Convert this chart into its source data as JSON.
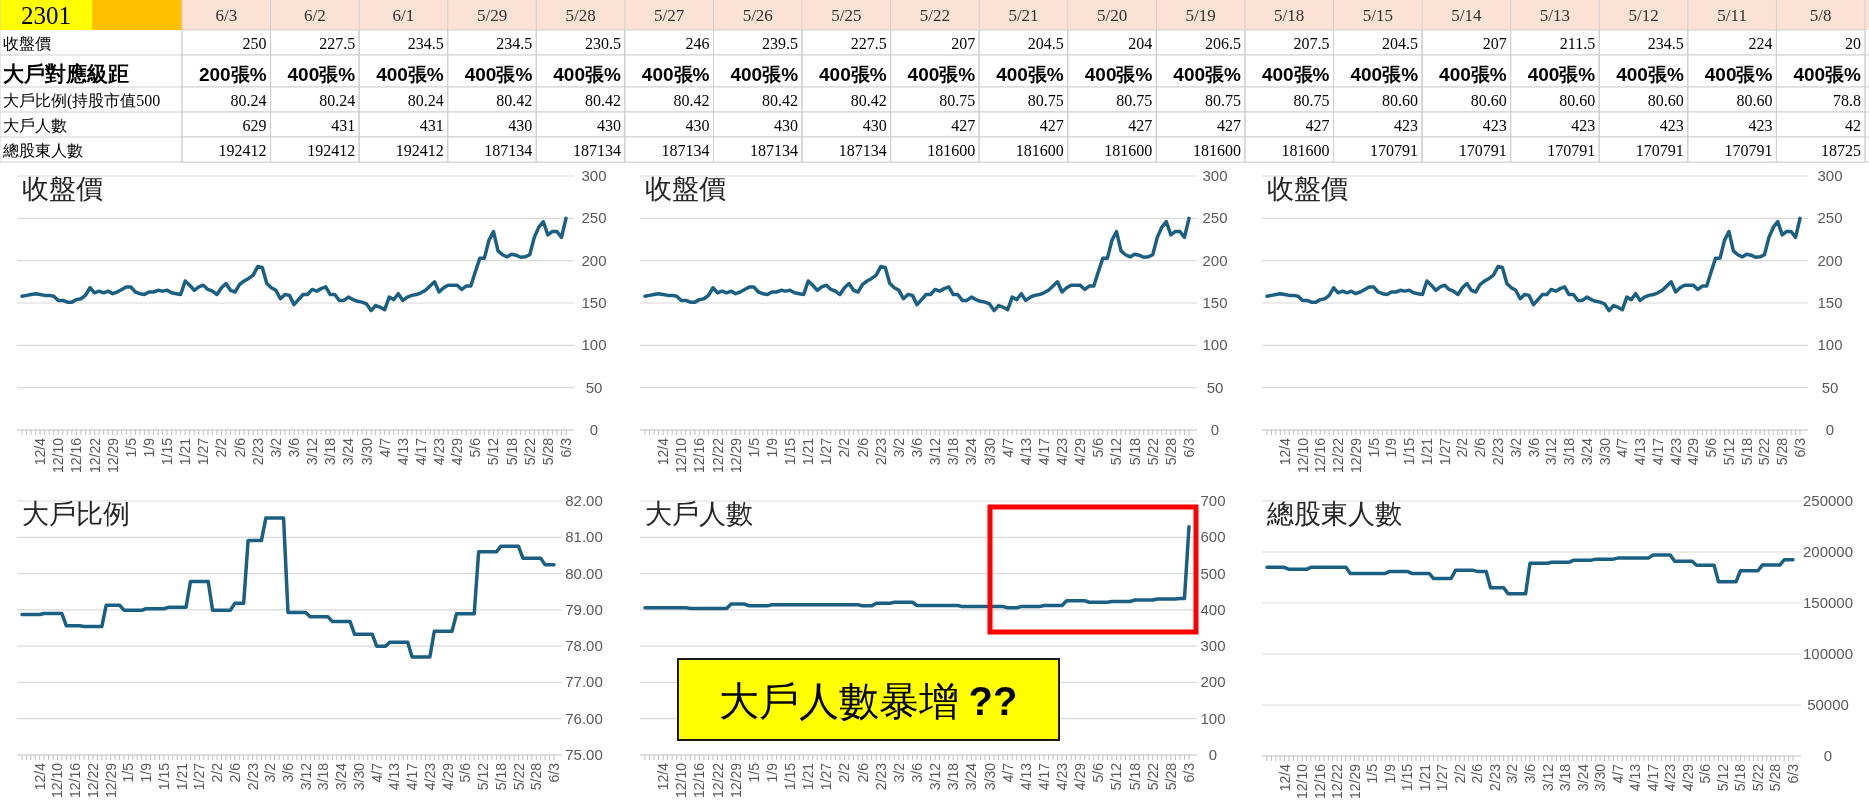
{
  "chart_data": [
    {
      "type": "heatmap",
      "title": "2301",
      "cells": [
        [
          null,
          null,
          null,
          null,
          null,
          null,
          null,
          null,
          null,
          null,
          null,
          null,
          null,
          null,
          null,
          null,
          null,
          null,
          null
        ],
        [
          null,
          null,
          null,
          null,
          null,
          null,
          null,
          null,
          null,
          null,
          null,
          null,
          null,
          null,
          null,
          null,
          null,
          null,
          null
        ],
        [
          null,
          null,
          null,
          null,
          null,
          null,
          null,
          null,
          null,
          null,
          null,
          null,
          null,
          null,
          null,
          null,
          null,
          null,
          null
        ],
        [
          null,
          null,
          null,
          null,
          null,
          null,
          null,
          null,
          null,
          null,
          null,
          null,
          null,
          null,
          null,
          null,
          null,
          null,
          null
        ],
        [
          null,
          null,
          null,
          null,
          null,
          null,
          null,
          null,
          null,
          null,
          null,
          null,
          null,
          null,
          null,
          null,
          null,
          null,
          null
        ]
      ],
      "categories": [
        "6/3",
        "6/2",
        "6/1",
        "5/29",
        "5/28",
        "5/27",
        "5/26",
        "5/25",
        "5/22",
        "5/21",
        "5/20",
        "5/19",
        "5/18",
        "5/15",
        "5/14",
        "5/13",
        "5/12",
        "5/11",
        "5/8"
      ],
      "y_categories": [
        "收盤價",
        "大戶對應級距",
        "大戶比例(持股市值500",
        "大戶人數",
        "總股東人數"
      ],
      "cell_labels": [
        [
          "250",
          "227.5",
          "234.5",
          "234.5",
          "230.5",
          "246",
          "239.5",
          "227.5",
          "207",
          "204.5",
          "204",
          "206.5",
          "207.5",
          "204.5",
          "207",
          "211.5",
          "234.5",
          "224",
          "20"
        ],
        [
          "200張%",
          "400張%",
          "400張%",
          "400張%",
          "400張%",
          "400張%",
          "400張%",
          "400張%",
          "400張%",
          "400張%",
          "400張%",
          "400張%",
          "400張%",
          "400張%",
          "400張%",
          "400張%",
          "400張%",
          "400張%",
          "400張%"
        ],
        [
          "80.24",
          "80.24",
          "80.24",
          "80.42",
          "80.42",
          "80.42",
          "80.42",
          "80.42",
          "80.75",
          "80.75",
          "80.75",
          "80.75",
          "80.75",
          "80.60",
          "80.60",
          "80.60",
          "80.60",
          "80.60",
          "78.8"
        ],
        [
          "629",
          "431",
          "431",
          "430",
          "430",
          "430",
          "430",
          "430",
          "427",
          "427",
          "427",
          "427",
          "427",
          "423",
          "423",
          "423",
          "423",
          "423",
          "42"
        ],
        [
          "192412",
          "192412",
          "192412",
          "187134",
          "187134",
          "187134",
          "187134",
          "187134",
          "181600",
          "181600",
          "181600",
          "181600",
          "181600",
          "170791",
          "170791",
          "170791",
          "170791",
          "170791",
          "18725"
        ]
      ]
    },
    {
      "type": "line",
      "title": "收盤價",
      "color": "#1b5f82",
      "ylim": [
        0,
        300
      ],
      "yticks": [
        0,
        50,
        100,
        150,
        200,
        250,
        300
      ],
      "grid": "y",
      "categories": [
        null,
        null,
        null,
        null,
        "12/4",
        null,
        null,
        null,
        "12/10",
        null,
        null,
        null,
        "12/16",
        null,
        null,
        null,
        "12/22",
        null,
        null,
        null,
        "12/29",
        null,
        null,
        null,
        "1/5",
        null,
        null,
        null,
        "1/9",
        null,
        null,
        null,
        "1/15",
        null,
        null,
        null,
        "1/21",
        null,
        null,
        null,
        "1/27",
        null,
        null,
        null,
        "2/2",
        null,
        null,
        null,
        "2/6",
        null,
        null,
        null,
        "2/23",
        null,
        null,
        null,
        "3/2",
        null,
        null,
        null,
        "3/6",
        null,
        null,
        null,
        "3/12",
        null,
        null,
        null,
        "3/18",
        null,
        null,
        null,
        "3/24",
        null,
        null,
        null,
        "3/30",
        null,
        null,
        null,
        "4/7",
        null,
        null,
        null,
        "4/13",
        null,
        null,
        null,
        "4/17",
        null,
        null,
        null,
        "4/23",
        null,
        null,
        null,
        "4/29",
        null,
        null,
        null,
        "5/6",
        null,
        null,
        null,
        "5/12",
        null,
        null,
        null,
        "5/18",
        null,
        null,
        null,
        "5/22",
        null,
        null,
        null,
        "5/28",
        null,
        null,
        null,
        "6/3"
      ],
      "values": [
        158,
        159,
        160,
        161,
        160,
        159,
        159,
        158,
        153,
        153,
        151,
        151,
        154,
        155,
        159,
        168,
        162,
        164,
        162,
        164,
        161,
        163,
        166,
        169,
        169,
        163,
        161,
        160,
        163,
        163,
        165,
        164,
        165,
        162,
        161,
        160,
        176,
        171,
        165,
        169,
        171,
        166,
        164,
        160,
        168,
        173,
        165,
        163,
        172,
        176,
        179,
        183,
        193,
        192,
        173,
        168,
        165,
        155,
        160,
        159,
        148,
        154,
        160,
        160,
        166,
        164,
        167,
        169,
        160,
        160,
        153,
        153,
        157,
        154,
        152,
        151,
        149,
        141,
        147,
        145,
        142,
        157,
        154,
        161,
        153,
        157,
        159,
        160,
        162,
        165,
        170,
        175,
        163,
        168,
        171,
        171,
        171,
        166,
        170,
        170,
        187,
        203,
        203,
        224,
        234.5,
        211.5,
        207,
        204.5,
        207.5,
        206.5,
        204,
        204.5,
        207,
        227.5,
        239.5,
        246,
        230.5,
        234.5,
        234.5,
        227.5,
        250
      ]
    },
    {
      "type": "line",
      "title": "收盤價",
      "color": "#1b5f82",
      "ylim": [
        0,
        300
      ],
      "yticks": [
        0,
        50,
        100,
        150,
        200,
        250,
        300
      ],
      "grid": "y",
      "categories": [
        null,
        null,
        null,
        null,
        "12/4",
        null,
        null,
        null,
        "12/10",
        null,
        null,
        null,
        "12/16",
        null,
        null,
        null,
        "12/22",
        null,
        null,
        null,
        "12/29",
        null,
        null,
        null,
        "1/5",
        null,
        null,
        null,
        "1/9",
        null,
        null,
        null,
        "1/15",
        null,
        null,
        null,
        "1/21",
        null,
        null,
        null,
        "1/27",
        null,
        null,
        null,
        "2/2",
        null,
        null,
        null,
        "2/6",
        null,
        null,
        null,
        "2/23",
        null,
        null,
        null,
        "3/2",
        null,
        null,
        null,
        "3/6",
        null,
        null,
        null,
        "3/12",
        null,
        null,
        null,
        "3/18",
        null,
        null,
        null,
        "3/24",
        null,
        null,
        null,
        "3/30",
        null,
        null,
        null,
        "4/7",
        null,
        null,
        null,
        "4/13",
        null,
        null,
        null,
        "4/17",
        null,
        null,
        null,
        "4/23",
        null,
        null,
        null,
        "4/29",
        null,
        null,
        null,
        "5/6",
        null,
        null,
        null,
        "5/12",
        null,
        null,
        null,
        "5/18",
        null,
        null,
        null,
        "5/22",
        null,
        null,
        null,
        "5/28",
        null,
        null,
        null,
        "6/3"
      ],
      "values": [
        158,
        159,
        160,
        161,
        160,
        159,
        159,
        158,
        153,
        153,
        151,
        151,
        154,
        155,
        159,
        168,
        162,
        164,
        162,
        164,
        161,
        163,
        166,
        169,
        169,
        163,
        161,
        160,
        163,
        163,
        165,
        164,
        165,
        162,
        161,
        160,
        176,
        171,
        165,
        169,
        171,
        166,
        164,
        160,
        168,
        173,
        165,
        163,
        172,
        176,
        179,
        183,
        193,
        192,
        173,
        168,
        165,
        155,
        160,
        159,
        148,
        154,
        160,
        160,
        166,
        164,
        167,
        169,
        160,
        160,
        153,
        153,
        157,
        154,
        152,
        151,
        149,
        141,
        147,
        145,
        142,
        157,
        154,
        161,
        153,
        157,
        159,
        160,
        162,
        165,
        170,
        175,
        163,
        168,
        171,
        171,
        171,
        166,
        170,
        170,
        187,
        203,
        203,
        224,
        234.5,
        211.5,
        207,
        204.5,
        207.5,
        206.5,
        204,
        204.5,
        207,
        227.5,
        239.5,
        246,
        230.5,
        234.5,
        234.5,
        227.5,
        250
      ]
    },
    {
      "type": "line",
      "title": "收盤價",
      "color": "#1b5f82",
      "ylim": [
        0,
        300
      ],
      "yticks": [
        0,
        50,
        100,
        150,
        200,
        250,
        300
      ],
      "grid": "y",
      "categories": [
        null,
        null,
        null,
        null,
        "12/4",
        null,
        null,
        null,
        "12/10",
        null,
        null,
        null,
        "12/16",
        null,
        null,
        null,
        "12/22",
        null,
        null,
        null,
        "12/29",
        null,
        null,
        null,
        "1/5",
        null,
        null,
        null,
        "1/9",
        null,
        null,
        null,
        "1/15",
        null,
        null,
        null,
        "1/21",
        null,
        null,
        null,
        "1/27",
        null,
        null,
        null,
        "2/2",
        null,
        null,
        null,
        "2/6",
        null,
        null,
        null,
        "2/23",
        null,
        null,
        null,
        "3/2",
        null,
        null,
        null,
        "3/6",
        null,
        null,
        null,
        "3/12",
        null,
        null,
        null,
        "3/18",
        null,
        null,
        null,
        "3/24",
        null,
        null,
        null,
        "3/30",
        null,
        null,
        null,
        "4/7",
        null,
        null,
        null,
        "4/13",
        null,
        null,
        null,
        "4/17",
        null,
        null,
        null,
        "4/23",
        null,
        null,
        null,
        "4/29",
        null,
        null,
        null,
        "5/6",
        null,
        null,
        null,
        "5/12",
        null,
        null,
        null,
        "5/18",
        null,
        null,
        null,
        "5/22",
        null,
        null,
        null,
        "5/28",
        null,
        null,
        null,
        "6/3"
      ],
      "values": [
        158,
        159,
        160,
        161,
        160,
        159,
        159,
        158,
        153,
        153,
        151,
        151,
        154,
        155,
        159,
        168,
        162,
        164,
        162,
        164,
        161,
        163,
        166,
        169,
        169,
        163,
        161,
        160,
        163,
        163,
        165,
        164,
        165,
        162,
        161,
        160,
        176,
        171,
        165,
        169,
        171,
        166,
        164,
        160,
        168,
        173,
        165,
        163,
        172,
        176,
        179,
        183,
        193,
        192,
        173,
        168,
        165,
        155,
        160,
        159,
        148,
        154,
        160,
        160,
        166,
        164,
        167,
        169,
        160,
        160,
        153,
        153,
        157,
        154,
        152,
        151,
        149,
        141,
        147,
        145,
        142,
        157,
        154,
        161,
        153,
        157,
        159,
        160,
        162,
        165,
        170,
        175,
        163,
        168,
        171,
        171,
        171,
        166,
        170,
        170,
        187,
        203,
        203,
        224,
        234.5,
        211.5,
        207,
        204.5,
        207.5,
        206.5,
        204,
        204.5,
        207,
        227.5,
        239.5,
        246,
        230.5,
        234.5,
        234.5,
        227.5,
        250
      ]
    },
    {
      "type": "line",
      "title": "大戶比例",
      "color": "#1b5f82",
      "ylim": [
        75,
        82
      ],
      "yticks": [
        {
          "value": 75,
          "label": "75.00"
        },
        {
          "value": 76,
          "label": "76.00"
        },
        {
          "value": 77,
          "label": "77.00"
        },
        {
          "value": 78,
          "label": "78.00"
        },
        {
          "value": 79,
          "label": "79.00"
        },
        {
          "value": 80,
          "label": "80.00"
        },
        {
          "value": 81,
          "label": "81.00"
        },
        {
          "value": 82,
          "label": "82.00"
        }
      ],
      "grid": "y",
      "categories": [
        null,
        null,
        null,
        null,
        "12/4",
        null,
        null,
        null,
        "12/10",
        null,
        null,
        null,
        "12/16",
        null,
        null,
        null,
        "12/22",
        null,
        null,
        null,
        "12/29",
        null,
        null,
        null,
        "1/5",
        null,
        null,
        null,
        "1/9",
        null,
        null,
        null,
        "1/15",
        null,
        null,
        null,
        "1/21",
        null,
        null,
        null,
        "1/27",
        null,
        null,
        null,
        "2/2",
        null,
        null,
        null,
        "2/6",
        null,
        null,
        null,
        "2/23",
        null,
        null,
        null,
        "3/2",
        null,
        null,
        null,
        "3/6",
        null,
        null,
        null,
        "3/12",
        null,
        null,
        null,
        "3/18",
        null,
        null,
        null,
        "3/24",
        null,
        null,
        null,
        "3/30",
        null,
        null,
        null,
        "4/7",
        null,
        null,
        null,
        "4/13",
        null,
        null,
        null,
        "4/17",
        null,
        null,
        null,
        "4/23",
        null,
        null,
        null,
        "4/29",
        null,
        null,
        null,
        "5/6",
        null,
        null,
        null,
        "5/12",
        null,
        null,
        null,
        "5/18",
        null,
        null,
        null,
        "5/22",
        null,
        null,
        null,
        "5/28",
        null,
        null,
        null,
        "6/3"
      ],
      "values": [
        78.87,
        78.87,
        78.87,
        78.87,
        78.87,
        78.9,
        78.9,
        78.9,
        78.9,
        78.9,
        78.56,
        78.56,
        78.56,
        78.56,
        78.54,
        78.54,
        78.54,
        78.54,
        78.54,
        79.13,
        79.13,
        79.13,
        79.13,
        78.99,
        78.99,
        78.99,
        78.99,
        78.99,
        79.03,
        79.03,
        79.03,
        79.03,
        79.03,
        79.07,
        79.07,
        79.07,
        79.07,
        79.07,
        79.78,
        79.78,
        79.78,
        79.78,
        79.78,
        78.99,
        78.99,
        78.99,
        78.99,
        78.99,
        79.18,
        79.18,
        79.18,
        80.91,
        80.91,
        80.91,
        80.91,
        81.53,
        81.53,
        81.53,
        81.53,
        81.53,
        78.93,
        78.93,
        78.93,
        78.93,
        78.93,
        78.81,
        78.81,
        78.81,
        78.81,
        78.81,
        78.68,
        78.68,
        78.68,
        78.68,
        78.68,
        78.33,
        78.33,
        78.33,
        78.33,
        78.33,
        78.0,
        78.0,
        78.0,
        78.11,
        78.11,
        78.11,
        78.11,
        78.11,
        77.7,
        77.7,
        77.7,
        77.7,
        77.7,
        78.41,
        78.41,
        78.41,
        78.41,
        78.41,
        78.89,
        78.89,
        78.89,
        78.89,
        78.89,
        80.6,
        80.6,
        80.6,
        80.6,
        80.6,
        80.75,
        80.75,
        80.75,
        80.75,
        80.75,
        80.42,
        80.42,
        80.42,
        80.42,
        80.42,
        80.24,
        80.24,
        80.24
      ]
    },
    {
      "type": "line",
      "title": "大戶人數",
      "color": "#1b5f82",
      "ylim": [
        0,
        700
      ],
      "yticks": [
        0,
        100,
        200,
        300,
        400,
        500,
        600,
        700
      ],
      "grid": "y",
      "annotations": [
        "大戶人數暴增 **??**"
      ],
      "categories": [
        null,
        null,
        null,
        null,
        "12/4",
        null,
        null,
        null,
        "12/10",
        null,
        null,
        null,
        "12/16",
        null,
        null,
        null,
        "12/22",
        null,
        null,
        null,
        "12/29",
        null,
        null,
        null,
        "1/5",
        null,
        null,
        null,
        "1/9",
        null,
        null,
        null,
        "1/15",
        null,
        null,
        null,
        "1/21",
        null,
        null,
        null,
        "1/27",
        null,
        null,
        null,
        "2/2",
        null,
        null,
        null,
        "2/6",
        null,
        null,
        null,
        "2/23",
        null,
        null,
        null,
        "3/2",
        null,
        null,
        null,
        "3/6",
        null,
        null,
        null,
        "3/12",
        null,
        null,
        null,
        "3/18",
        null,
        null,
        null,
        "3/24",
        null,
        null,
        null,
        "3/30",
        null,
        null,
        null,
        "4/7",
        null,
        null,
        null,
        "4/13",
        null,
        null,
        null,
        "4/17",
        null,
        null,
        null,
        "4/23",
        null,
        null,
        null,
        "4/29",
        null,
        null,
        null,
        "5/6",
        null,
        null,
        null,
        "5/12",
        null,
        null,
        null,
        "5/18",
        null,
        null,
        null,
        "5/22",
        null,
        null,
        null,
        "5/28",
        null,
        null,
        null,
        "6/3"
      ],
      "values": [
        406,
        406,
        406,
        406,
        406,
        406,
        406,
        406,
        406,
        406,
        404,
        404,
        404,
        404,
        404,
        404,
        404,
        404,
        404,
        416,
        416,
        416,
        416,
        411,
        411,
        411,
        411,
        411,
        414,
        414,
        414,
        414,
        414,
        414,
        414,
        414,
        414,
        414,
        414,
        414,
        414,
        414,
        414,
        414,
        414,
        414,
        414,
        414,
        411,
        411,
        411,
        418,
        418,
        418,
        418,
        421,
        421,
        421,
        421,
        421,
        412,
        412,
        412,
        412,
        412,
        412,
        412,
        412,
        412,
        412,
        409,
        409,
        409,
        409,
        409,
        409,
        409,
        409,
        409,
        409,
        406,
        406,
        406,
        409,
        409,
        409,
        409,
        409,
        412,
        412,
        412,
        412,
        412,
        425,
        425,
        425,
        425,
        425,
        421,
        421,
        421,
        421,
        421,
        423,
        423,
        423,
        423,
        423,
        427,
        427,
        427,
        427,
        427,
        430,
        430,
        430,
        430,
        430,
        431,
        431,
        629
      ]
    },
    {
      "type": "line",
      "title": "總股東人數",
      "color": "#1b5f82",
      "ylim": [
        0,
        250000
      ],
      "yticks": [
        0,
        50000,
        100000,
        150000,
        200000,
        250000
      ],
      "grid": "y",
      "categories": [
        null,
        null,
        null,
        null,
        "12/4",
        null,
        null,
        null,
        "12/10",
        null,
        null,
        null,
        "12/16",
        null,
        null,
        null,
        "12/22",
        null,
        null,
        null,
        "12/29",
        null,
        null,
        null,
        "1/5",
        null,
        null,
        null,
        "1/9",
        null,
        null,
        null,
        "1/15",
        null,
        null,
        null,
        "1/21",
        null,
        null,
        null,
        "1/27",
        null,
        null,
        null,
        "2/2",
        null,
        null,
        null,
        "2/6",
        null,
        null,
        null,
        "2/23",
        null,
        null,
        null,
        "3/2",
        null,
        null,
        null,
        "3/6",
        null,
        null,
        null,
        "3/12",
        null,
        null,
        null,
        "3/18",
        null,
        null,
        null,
        "3/24",
        null,
        null,
        null,
        "3/30",
        null,
        null,
        null,
        "4/7",
        null,
        null,
        null,
        "4/13",
        null,
        null,
        null,
        "4/17",
        null,
        null,
        null,
        "4/23",
        null,
        null,
        null,
        "4/29",
        null,
        null,
        null,
        "5/6",
        null,
        null,
        null,
        "5/12",
        null,
        null,
        null,
        "5/18",
        null,
        null,
        null,
        "5/22",
        null,
        null,
        null,
        "5/28",
        null,
        null,
        null,
        "6/3"
      ],
      "values": [
        185000,
        185000,
        185000,
        185000,
        185000,
        183000,
        183000,
        183000,
        183000,
        183000,
        185000,
        185000,
        185000,
        185000,
        185000,
        185000,
        185000,
        185000,
        185000,
        179000,
        179000,
        179000,
        179000,
        179000,
        179000,
        179000,
        179000,
        179000,
        181000,
        181000,
        181000,
        181000,
        181000,
        179000,
        179000,
        179000,
        179000,
        179000,
        174000,
        174000,
        174000,
        174000,
        174000,
        182000,
        182000,
        182000,
        182000,
        182000,
        181000,
        181000,
        181000,
        165000,
        165000,
        165000,
        165000,
        159000,
        159000,
        159000,
        159000,
        159000,
        189000,
        189000,
        189000,
        189000,
        189000,
        190000,
        190000,
        190000,
        190000,
        190000,
        192000,
        192000,
        192000,
        192000,
        192000,
        193000,
        193000,
        193000,
        193000,
        193000,
        194000,
        194000,
        194000,
        194000,
        194000,
        194000,
        194000,
        194000,
        197000,
        197000,
        197000,
        197000,
        197000,
        191000,
        191000,
        191000,
        191000,
        191000,
        187000,
        187000,
        187000,
        187000,
        187000,
        170791,
        170791,
        170791,
        170791,
        170791,
        181600,
        181600,
        181600,
        181600,
        181600,
        187134,
        187134,
        187134,
        187134,
        187134,
        192412,
        192412,
        192412
      ]
    }
  ]
}
